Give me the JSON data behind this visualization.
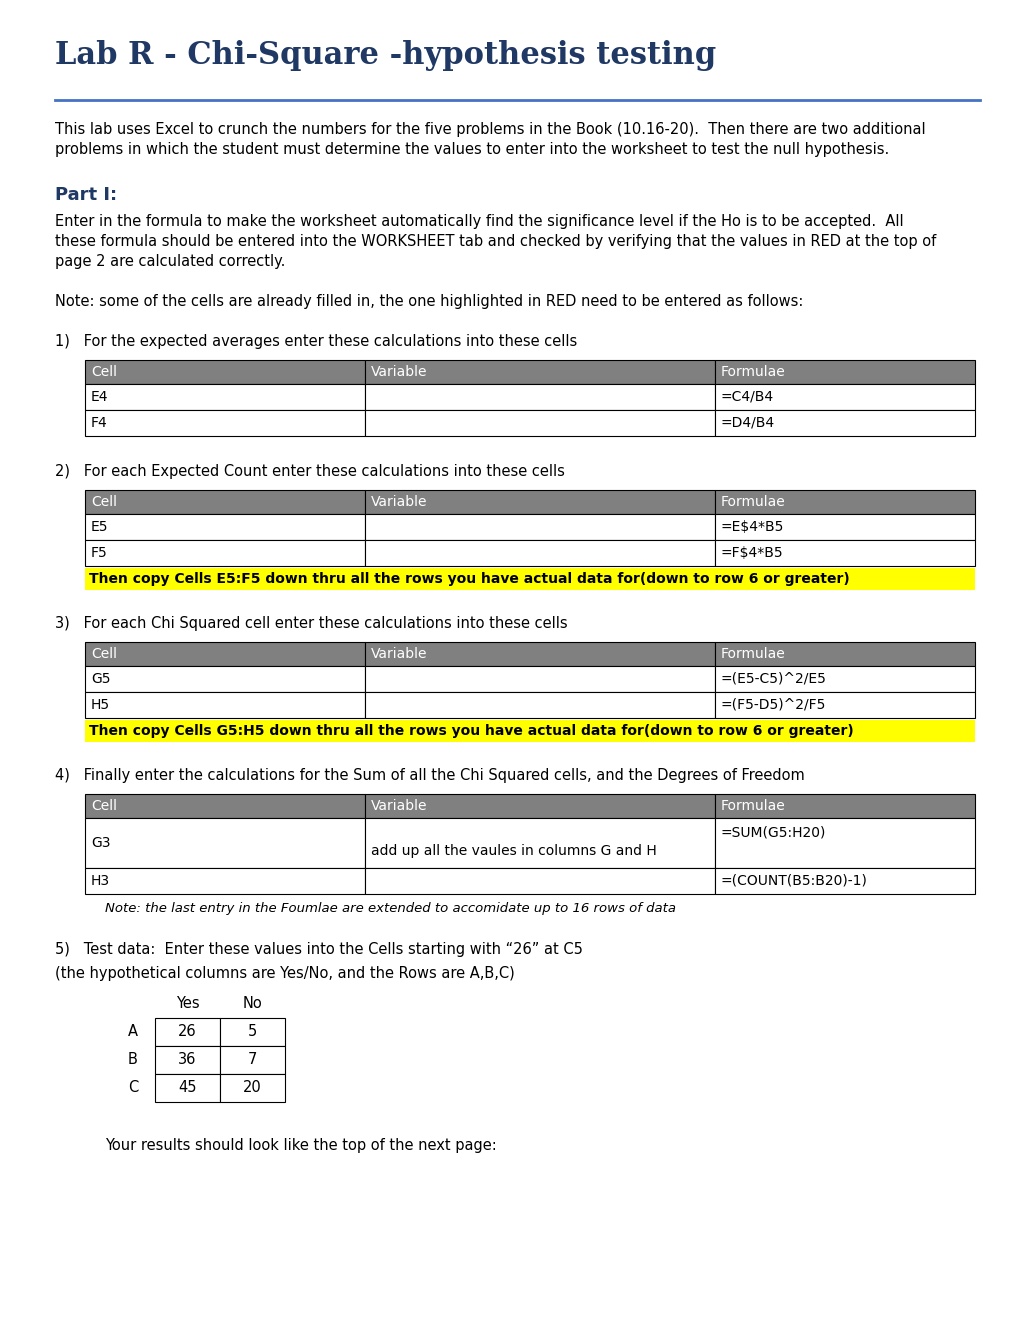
{
  "title": "Lab R - Chi-Square -hypothesis testing",
  "title_color": "#1F3864",
  "title_fontsize": 22,
  "separator_color": "#4472C4",
  "intro_text1": "This lab uses Excel to crunch the numbers for the five problems in the Book (10.16-20).  Then there are two additional",
  "intro_text2": "problems in which the student must determine the values to enter into the worksheet to test the null hypothesis.",
  "part1_label": "Part I:",
  "part1_color": "#1F3864",
  "part1_text1": "Enter in the formula to make the worksheet automatically find the significance level if the Ho is to be accepted.  All",
  "part1_text2": "these formula should be entered into the WORKSHEET tab and checked by verifying that the values in RED at the top of",
  "part1_text3": "page 2 are calculated correctly.",
  "note_text": "Note: some of the cells are already filled in, the one highlighted in RED need to be entered as follows:",
  "table1_title": "1)   For the expected averages enter these calculations into these cells",
  "table1_headers": [
    "Cell",
    "Variable",
    "Formulae"
  ],
  "table1_rows": [
    [
      "E4",
      "",
      "=C4/B4"
    ],
    [
      "F4",
      "",
      "=D4/B4"
    ]
  ],
  "table2_title": "2)   For each Expected Count enter these calculations into these cells",
  "table2_headers": [
    "Cell",
    "Variable",
    "Formulae"
  ],
  "table2_rows": [
    [
      "E5",
      "",
      "=E$4*B5"
    ],
    [
      "F5",
      "",
      "=F$4*B5"
    ]
  ],
  "table2_note": "Then copy Cells E5:F5 down thru all the rows you have actual data for(down to row 6 or greater)",
  "table3_title": "3)   For each Chi Squared cell enter these calculations into these cells",
  "table3_headers": [
    "Cell",
    "Variable",
    "Formulae"
  ],
  "table3_rows": [
    [
      "G5",
      "",
      "=(E5-C5)^2/E5"
    ],
    [
      "H5",
      "",
      "=(F5-D5)^2/F5"
    ]
  ],
  "table3_note": "Then copy Cells G5:H5 down thru all the rows you have actual data for(down to row 6 or greater)",
  "table4_title": "4)   Finally enter the calculations for the Sum of all the Chi Squared cells, and the Degrees of Freedom",
  "table4_headers": [
    "Cell",
    "Variable",
    "Formulae"
  ],
  "table4_row1": [
    "G3",
    "add up all the vaules in columns G and H",
    "=SUM(G5:H20)"
  ],
  "table4_row2": [
    "H3",
    "",
    "=(COUNT(B5:B20)-1)"
  ],
  "table4_note": "Note: the last entry in the Foumlae are extended to accomidate up to 16 rows of data",
  "section5_line1": "5)   Test data:  Enter these values into the Cells starting with “26” at C5",
  "section5_line2": "(the hypothetical columns are Yes/No, and the Rows are A,B,C)",
  "test_data_rows": [
    [
      "A",
      "26",
      "5"
    ],
    [
      "B",
      "36",
      "7"
    ],
    [
      "C",
      "45",
      "20"
    ]
  ],
  "final_note": "Your results should look like the top of the next page:",
  "header_bg": "#808080",
  "header_fg": "#FFFFFF",
  "row_bg": "#FFFFFF",
  "row_fg": "#000000",
  "highlight_bg": "#FFFF00",
  "highlight_fg": "#000000",
  "bg_color": "#FFFFFF",
  "font_size_body": 10.5,
  "font_size_table": 10.0,
  "font_size_title": 22
}
